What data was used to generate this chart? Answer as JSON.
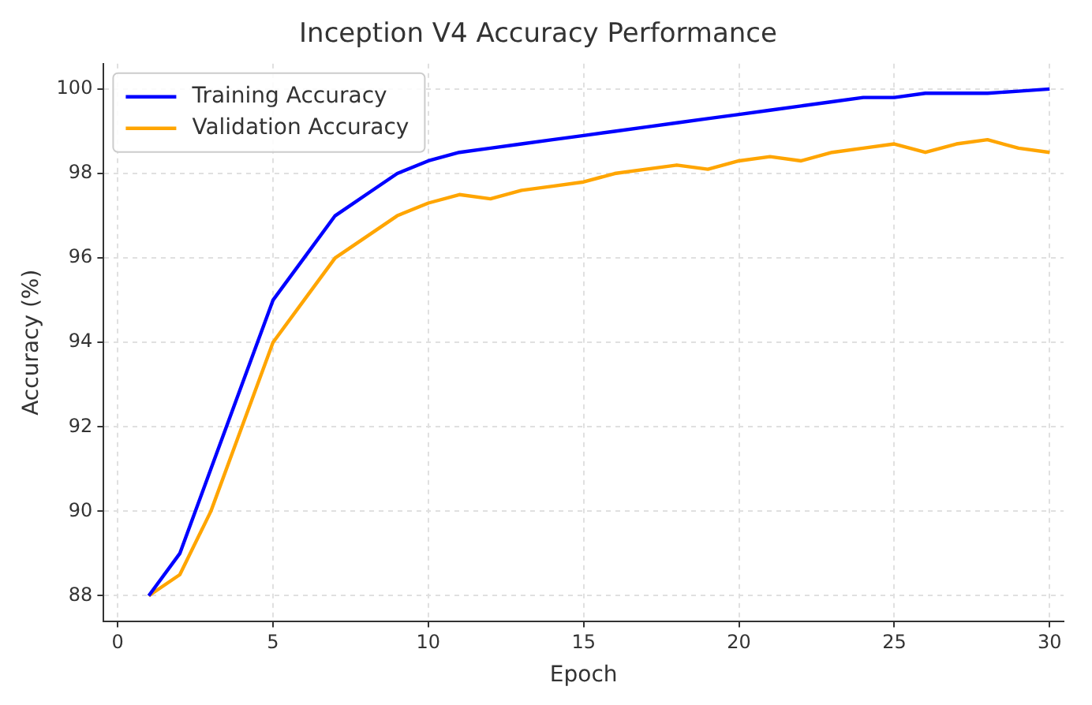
{
  "chart_data": {
    "type": "line",
    "title": "Inception V4 Accuracy Performance",
    "xlabel": "Epoch",
    "ylabel": "Accuracy (%)",
    "x": [
      1,
      2,
      3,
      4,
      5,
      6,
      7,
      8,
      9,
      10,
      11,
      12,
      13,
      14,
      15,
      16,
      17,
      18,
      19,
      20,
      21,
      22,
      23,
      24,
      25,
      26,
      27,
      28,
      29,
      30
    ],
    "series": [
      {
        "name": "Training Accuracy",
        "color": "#0000ff",
        "values": [
          88,
          89,
          91,
          93,
          95,
          96,
          97,
          97.5,
          98,
          98.3,
          98.5,
          98.6,
          98.7,
          98.8,
          98.9,
          99,
          99.1,
          99.2,
          99.3,
          99.4,
          99.5,
          99.6,
          99.7,
          99.8,
          99.8,
          99.9,
          99.9,
          99.9,
          99.95,
          100
        ]
      },
      {
        "name": "Validation Accuracy",
        "color": "#ffa500",
        "values": [
          88,
          88.5,
          90,
          92,
          94,
          95,
          96,
          96.5,
          97,
          97.3,
          97.5,
          97.4,
          97.6,
          97.7,
          97.8,
          98,
          98.1,
          98.2,
          98.1,
          98.3,
          98.4,
          98.3,
          98.5,
          98.6,
          98.7,
          98.5,
          98.7,
          98.8,
          98.6,
          98.5
        ]
      }
    ],
    "xlim": [
      -0.45,
      30.45
    ],
    "xticks": [
      0,
      5,
      10,
      15,
      20,
      25,
      30
    ],
    "ylim": [
      87.4,
      100.6
    ],
    "yticks": [
      88,
      90,
      92,
      94,
      96,
      98,
      100
    ],
    "grid": true,
    "legend": "top left",
    "marker": "none",
    "line_style": "solid"
  }
}
